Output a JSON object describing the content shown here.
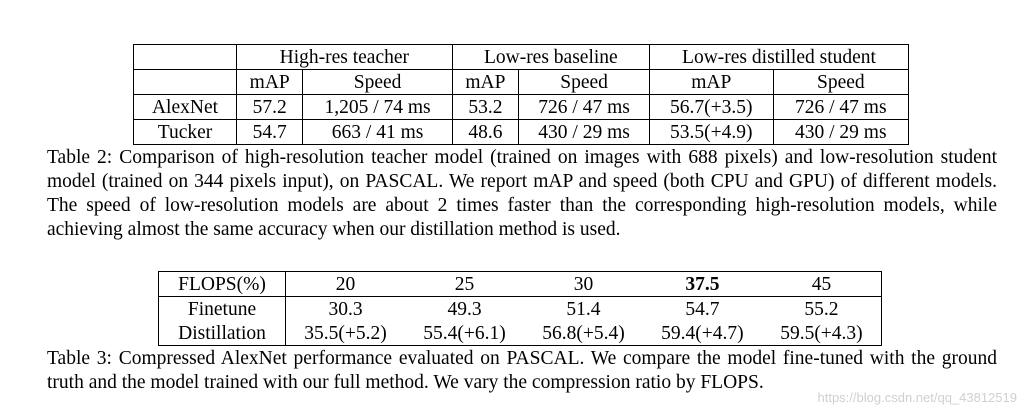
{
  "table2": {
    "groups": [
      "High-res teacher",
      "Low-res baseline",
      "Low-res distilled student"
    ],
    "subheaders": [
      "mAP",
      "Speed",
      "mAP",
      "Speed",
      "mAP",
      "Speed"
    ],
    "rows": [
      {
        "model": "AlexNet",
        "cells": [
          "57.2",
          "1,205 / 74 ms",
          "53.2",
          "726 / 47 ms",
          "56.7(+3.5)",
          "726 / 47 ms"
        ]
      },
      {
        "model": "Tucker",
        "cells": [
          "54.7",
          "663 / 41 ms",
          "48.6",
          "430 / 29 ms",
          "53.5(+4.9)",
          "430 / 29 ms"
        ]
      }
    ],
    "caption_label": "Table 2:",
    "caption": "Comparison of high-resolution teacher model (trained on images with 688 pixels) and low-resolution student model (trained on 344 pixels input), on PASCAL. We report mAP and speed (both CPU and GPU) of different models. The speed of low-resolution models are about 2 times faster than the corresponding high-resolution models, while achieving almost the same accuracy when our distillation method is used."
  },
  "table3": {
    "header_label": "FLOPS(%)",
    "header": [
      "20",
      "25",
      "30",
      "37.5",
      "45"
    ],
    "bold_column": "37.5",
    "rows": [
      {
        "label": "Finetune",
        "cells": [
          "30.3",
          "49.3",
          "51.4",
          "54.7",
          "55.2"
        ]
      },
      {
        "label": "Distillation",
        "cells": [
          "35.5(+5.2)",
          "55.4(+6.1)",
          "56.8(+5.4)",
          "59.4(+4.7)",
          "59.5(+4.3)"
        ]
      }
    ],
    "caption_label": "Table 3:",
    "caption": "Compressed AlexNet performance evaluated on PASCAL. We compare the model fine-tuned with the ground truth and the model trained with our full method. We vary the compression ratio by FLOPS."
  },
  "watermark": "https://blog.csdn.net/qq_43812519"
}
